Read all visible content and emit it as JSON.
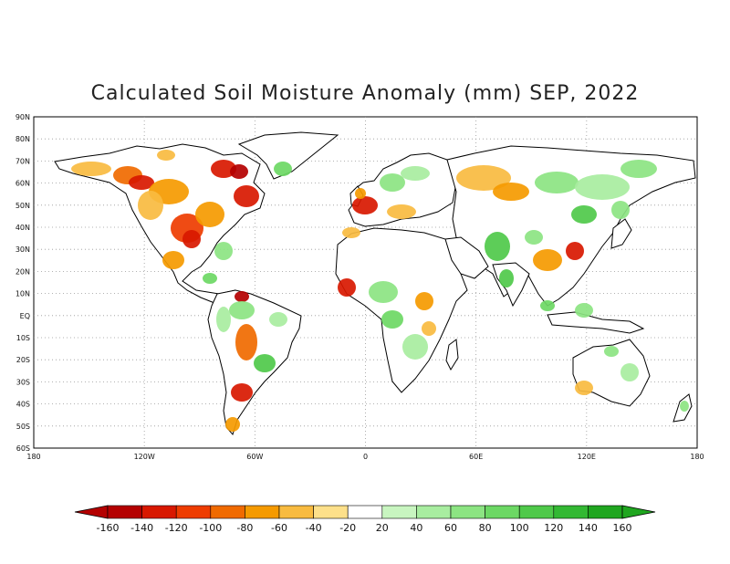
{
  "title": "Calculated Soil Moisture Anomaly (mm) SEP, 2022",
  "latitude_labels": [
    "90N",
    "80N",
    "70N",
    "60N",
    "50N",
    "40N",
    "30N",
    "20N",
    "10N",
    "EQ",
    "10S",
    "20S",
    "30S",
    "40S",
    "50S",
    "60S"
  ],
  "longitude_labels": [
    "180",
    "120W",
    "60W",
    "0",
    "60E",
    "120E",
    "180"
  ],
  "colorbar": {
    "tick_labels": [
      "-160",
      "-140",
      "-120",
      "-100",
      "-80",
      "-60",
      "-40",
      "-20",
      "20",
      "40",
      "60",
      "80",
      "100",
      "120",
      "140",
      "160"
    ],
    "colors": [
      "#b40000",
      "#d81800",
      "#ee3c00",
      "#f06a00",
      "#f59a00",
      "#f8bb40",
      "#fde08a",
      "#ffffff",
      "#c8f5c0",
      "#a8eda0",
      "#8ce482",
      "#6cd864",
      "#4fc94a",
      "#33b833",
      "#1fa61f"
    ],
    "under_color": "#b40000",
    "over_color": "#1fa61f"
  },
  "palette": {
    "land": "#ffffff",
    "coast": "#000000",
    "grid": "#999999"
  }
}
